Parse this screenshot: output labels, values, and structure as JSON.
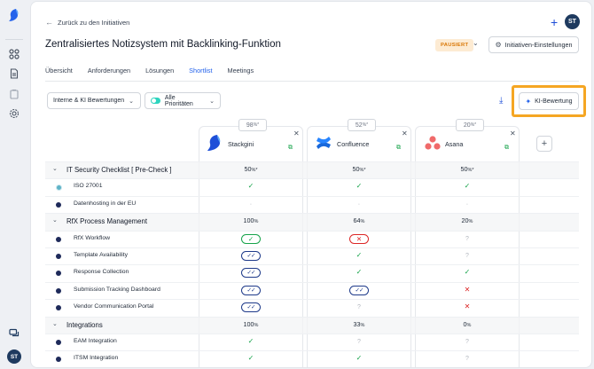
{
  "nav": {
    "back_label": "Zurück zu den Initiativen",
    "user_initials": "ST"
  },
  "header": {
    "title": "Zentralisiertes Notizsystem mit Backlinking-Funktion",
    "status": "PAUSIERT",
    "settings_label": "Initiativen-Einstellungen"
  },
  "tabs": [
    {
      "label": "Übersicht",
      "active": false
    },
    {
      "label": "Anforderungen",
      "active": false
    },
    {
      "label": "Lösungen",
      "active": false
    },
    {
      "label": "Shortlist",
      "active": true
    },
    {
      "label": "Meetings",
      "active": false
    }
  ],
  "filters": {
    "ratings": "Interne & KI Bewertungen",
    "priorities": "Alle Prioritäten"
  },
  "ki_button": "KI-Bewertung",
  "vendors": [
    {
      "name": "Stackgini",
      "score": "98",
      "unit": "%*"
    },
    {
      "name": "Confluence",
      "score": "52",
      "unit": "%*"
    },
    {
      "name": "Asana",
      "score": "20",
      "unit": "%*"
    }
  ],
  "rows": [
    {
      "type": "group",
      "label": "IT Security Checklist [ Pre-Check ]",
      "cells": [
        {
          "v": "50",
          "u": "%*"
        },
        {
          "v": "50",
          "u": "%*"
        },
        {
          "v": "50",
          "u": "%*"
        }
      ]
    },
    {
      "type": "item",
      "label": "ISO 27001",
      "dot": "teal",
      "cells": [
        "check",
        "check",
        "check"
      ]
    },
    {
      "type": "item",
      "label": "Datenhosting in der EU",
      "dot": "navy",
      "cells": [
        "dash",
        "dash",
        "dash"
      ]
    },
    {
      "type": "group",
      "label": "RfX Process Management",
      "cells": [
        {
          "v": "100",
          "u": "%"
        },
        {
          "v": "64",
          "u": "%"
        },
        {
          "v": "20",
          "u": "%"
        }
      ]
    },
    {
      "type": "item",
      "label": "RfX Workflow",
      "dot": "navy",
      "cells": [
        "pill-check",
        "pill-x",
        "question"
      ]
    },
    {
      "type": "item",
      "label": "Template Availability",
      "dot": "navy",
      "cells": [
        "pill-double",
        "check",
        "question"
      ]
    },
    {
      "type": "item",
      "label": "Response Collection",
      "dot": "navy",
      "cells": [
        "pill-double",
        "check",
        "check"
      ]
    },
    {
      "type": "item",
      "label": "Submission Tracking Dashboard",
      "dot": "navy",
      "cells": [
        "pill-double",
        "pill-double",
        "x"
      ]
    },
    {
      "type": "item",
      "label": "Vendor Communication Portal",
      "dot": "navy",
      "cells": [
        "pill-double",
        "question",
        "x"
      ]
    },
    {
      "type": "group",
      "label": "Integrations",
      "cells": [
        {
          "v": "100",
          "u": "%"
        },
        {
          "v": "33",
          "u": "%"
        },
        {
          "v": "0",
          "u": "%"
        }
      ]
    },
    {
      "type": "item",
      "label": "EAM Integration",
      "dot": "navy",
      "cells": [
        "check",
        "question",
        "question"
      ]
    },
    {
      "type": "item",
      "label": "ITSM Integration",
      "dot": "navy",
      "cells": [
        "check",
        "check",
        "question"
      ]
    }
  ]
}
